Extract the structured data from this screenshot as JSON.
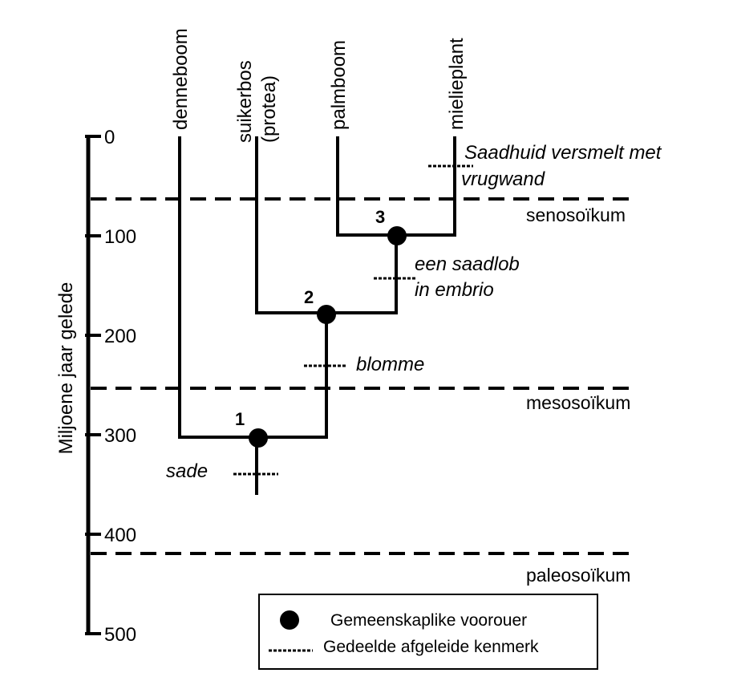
{
  "axis": {
    "label": "Miljoene jaar gelede",
    "ticks": [
      "0",
      "100",
      "200",
      "300",
      "400",
      "500"
    ]
  },
  "taxa": {
    "pine": "denneboom",
    "protea_line1": "suikerbos",
    "protea_line2": "(protea)",
    "palm": "palmboom",
    "maize": "mielieplant"
  },
  "eras": {
    "cenozoic": "senosoïkum",
    "mesozoic": "mesosoïkum",
    "paleozoic": "paleosoïkum"
  },
  "nodes": {
    "n1": "1",
    "n2": "2",
    "n3": "3"
  },
  "traits": {
    "seeds": "sade",
    "flowers": "blomme",
    "monocot_line1": "een saadlob",
    "monocot_line2": "in embrio",
    "fruit_line1": "Saadhuid versmelt met",
    "fruit_line2": "vrugwand"
  },
  "legend": {
    "ancestor": "Gemeenskaplike voorouer",
    "derived": "Gedeelde afgeleide kenmerk"
  }
}
